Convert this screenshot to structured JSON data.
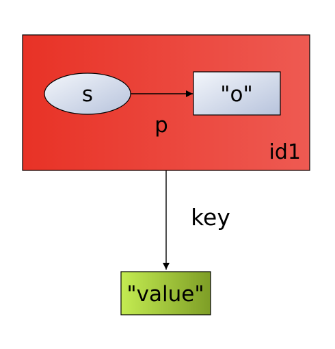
{
  "diagram": {
    "container": {
      "id_label": "id1",
      "fill_start": "#e83226",
      "fill_end": "#ee5a52",
      "stroke": "#000000"
    },
    "subject": {
      "label": "s",
      "fill_start": "#f3f6fb",
      "fill_end": "#b7c3dc"
    },
    "object": {
      "label": "\"o\"",
      "fill_start": "#f3f6fb",
      "fill_end": "#b7c3dc"
    },
    "predicate": {
      "label": "p"
    },
    "key_edge": {
      "label": "key"
    },
    "value_node": {
      "label": "\"value\"",
      "fill_start": "#c4ec52",
      "fill_end": "#7e9e26"
    }
  }
}
